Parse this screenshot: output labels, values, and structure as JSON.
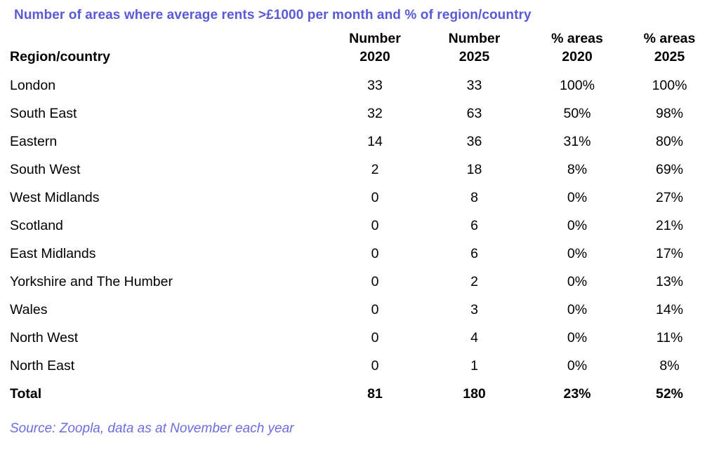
{
  "title": {
    "text": "Number of areas where average rents >£1000 per month and % of region/country",
    "color": "#5a5ad6"
  },
  "table": {
    "header": {
      "region_label": "Region/country",
      "cols": [
        {
          "line1": "Number",
          "line2": "2020"
        },
        {
          "line1": "Number",
          "line2": "2025"
        },
        {
          "line1": "% areas",
          "line2": "2020"
        },
        {
          "line1": "% areas",
          "line2": "2025"
        }
      ]
    },
    "rows": [
      {
        "region": "London",
        "values": [
          "33",
          "33",
          "100%",
          "100%"
        ]
      },
      {
        "region": "South East",
        "values": [
          "32",
          "63",
          "50%",
          "98%"
        ]
      },
      {
        "region": "Eastern",
        "values": [
          "14",
          "36",
          "31%",
          "80%"
        ]
      },
      {
        "region": "South West",
        "values": [
          "2",
          "18",
          "8%",
          "69%"
        ]
      },
      {
        "region": "West Midlands",
        "values": [
          "0",
          "8",
          "0%",
          "27%"
        ]
      },
      {
        "region": "Scotland",
        "values": [
          "0",
          "6",
          "0%",
          "21%"
        ]
      },
      {
        "region": "East Midlands",
        "values": [
          "0",
          "6",
          "0%",
          "17%"
        ]
      },
      {
        "region": "Yorkshire and The Humber",
        "values": [
          "0",
          "2",
          "0%",
          "13%"
        ]
      },
      {
        "region": "Wales",
        "values": [
          "0",
          "3",
          "0%",
          "14%"
        ]
      },
      {
        "region": "North West",
        "values": [
          "0",
          "4",
          "0%",
          "11%"
        ]
      },
      {
        "region": "North East",
        "values": [
          "0",
          "1",
          "0%",
          "8%"
        ]
      },
      {
        "region": "Total",
        "values": [
          "81",
          "180",
          "23%",
          "52%"
        ]
      }
    ]
  },
  "source": {
    "text": "Source: Zoopla, data as at November each year",
    "color": "#6b6ce0"
  },
  "chart_data": {
    "type": "table",
    "title": "Number of areas where average rents >£1000 per month and % of region/country",
    "columns": [
      "Region/country",
      "Number 2020",
      "Number 2025",
      "% areas 2020",
      "% areas 2025"
    ],
    "rows": [
      [
        "London",
        33,
        33,
        "100%",
        "100%"
      ],
      [
        "South East",
        32,
        63,
        "50%",
        "98%"
      ],
      [
        "Eastern",
        14,
        36,
        "31%",
        "80%"
      ],
      [
        "South West",
        2,
        18,
        "8%",
        "69%"
      ],
      [
        "West Midlands",
        0,
        8,
        "0%",
        "27%"
      ],
      [
        "Scotland",
        0,
        6,
        "0%",
        "21%"
      ],
      [
        "East Midlands",
        0,
        6,
        "0%",
        "17%"
      ],
      [
        "Yorkshire and The Humber",
        0,
        2,
        "0%",
        "13%"
      ],
      [
        "Wales",
        0,
        3,
        "0%",
        "14%"
      ],
      [
        "North West",
        0,
        4,
        "0%",
        "11%"
      ],
      [
        "North East",
        0,
        1,
        "0%",
        "8%"
      ],
      [
        "Total",
        81,
        180,
        "23%",
        "52%"
      ]
    ],
    "source_note": "Source: Zoopla, data as at November each year"
  }
}
